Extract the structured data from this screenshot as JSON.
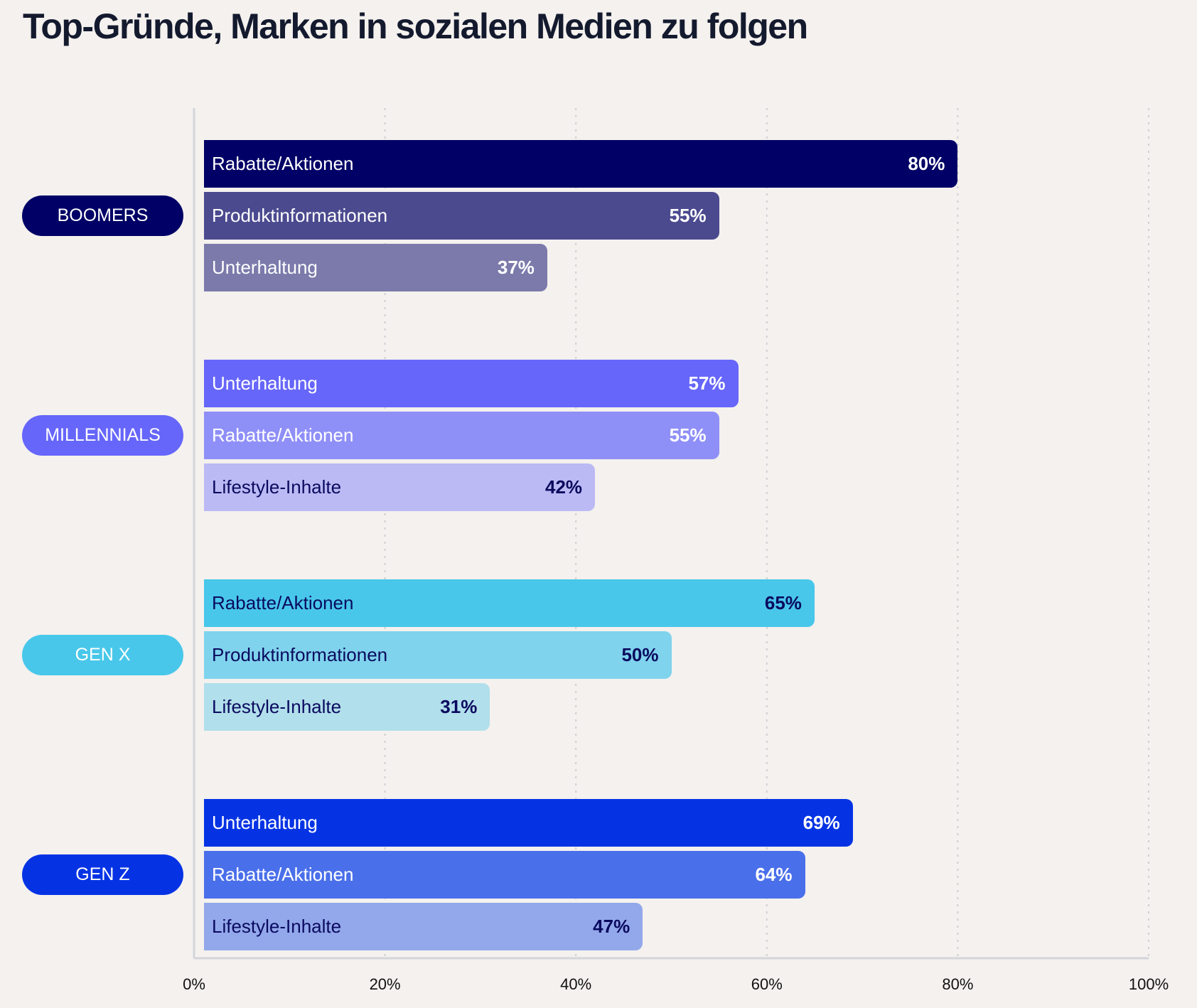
{
  "title": "Top-Gründe, Marken in sozialen Medien zu folgen",
  "chart_data": {
    "type": "bar",
    "orientation": "horizontal",
    "title": "Top-Gründe, Marken in sozialen Medien zu folgen",
    "xlim": [
      0,
      100
    ],
    "x_ticks": [
      "0%",
      "20%",
      "40%",
      "60%",
      "80%",
      "100%"
    ],
    "grid": "vertical dotted",
    "groups": [
      {
        "name": "BOOMERS",
        "color": "#000066",
        "text_color": "#ffffff",
        "bars": [
          {
            "label": "Rabatte/Aktionen",
            "value": 80,
            "value_label": "80%",
            "color": "#000066",
            "text_color": "#ffffff"
          },
          {
            "label": "Produktinformationen",
            "value": 55,
            "value_label": "55%",
            "color": "#4b4a8f",
            "text_color": "#ffffff"
          },
          {
            "label": "Unterhaltung",
            "value": 37,
            "value_label": "37%",
            "color": "#7b7aab",
            "text_color": "#ffffff"
          }
        ]
      },
      {
        "name": "MILLENNIALS",
        "color": "#6666fa",
        "text_color": "#ffffff",
        "bars": [
          {
            "label": "Unterhaltung",
            "value": 57,
            "value_label": "57%",
            "color": "#6666fa",
            "text_color": "#ffffff"
          },
          {
            "label": "Rabatte/Aktionen",
            "value": 55,
            "value_label": "55%",
            "color": "#8f8ff8",
            "text_color": "#ffffff"
          },
          {
            "label": "Lifestyle-Inhalte",
            "value": 42,
            "value_label": "42%",
            "color": "#bbbaf4",
            "text_color": "#0a0a5e"
          }
        ]
      },
      {
        "name": "GEN X",
        "color": "#48c7ea",
        "text_color": "#ffffff",
        "bars": [
          {
            "label": "Rabatte/Aktionen",
            "value": 65,
            "value_label": "65%",
            "color": "#48c7ea",
            "text_color": "#0a0a5e"
          },
          {
            "label": "Produktinformationen",
            "value": 50,
            "value_label": "50%",
            "color": "#7fd3ed",
            "text_color": "#0a0a5e"
          },
          {
            "label": "Lifestyle-Inhalte",
            "value": 31,
            "value_label": "31%",
            "color": "#b1dfeb",
            "text_color": "#0a0a5e"
          }
        ]
      },
      {
        "name": "GEN Z",
        "color": "#0533e4",
        "text_color": "#ffffff",
        "bars": [
          {
            "label": "Unterhaltung",
            "value": 69,
            "value_label": "69%",
            "color": "#0533e4",
            "text_color": "#ffffff"
          },
          {
            "label": "Rabatte/Aktionen",
            "value": 64,
            "value_label": "64%",
            "color": "#4a6fea",
            "text_color": "#ffffff"
          },
          {
            "label": "Lifestyle-Inhalte",
            "value": 47,
            "value_label": "47%",
            "color": "#93a8eb",
            "text_color": "#0a0a5e"
          }
        ]
      }
    ]
  }
}
